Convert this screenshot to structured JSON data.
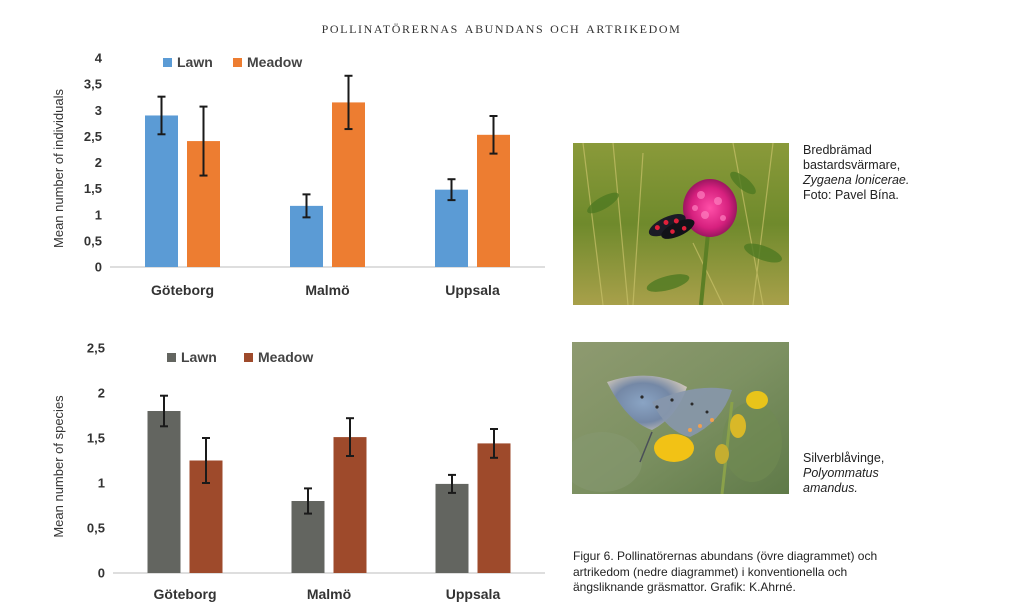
{
  "page": {
    "title": "pollinatörernas abundans och artrikedom"
  },
  "chart_data": [
    {
      "type": "bar",
      "title": "",
      "xlabel": "",
      "ylabel": "Mean number of individuals",
      "categories": [
        "Göteborg",
        "Malmö",
        "Uppsala"
      ],
      "ylim": [
        0,
        4
      ],
      "yticks": [
        "0",
        "0,5",
        "1",
        "1,5",
        "2",
        "2,5",
        "3",
        "3,5",
        "4"
      ],
      "grid": false,
      "legend": "top-left",
      "series": [
        {
          "name": "Lawn",
          "color": "#5b9bd5",
          "values": [
            2.9,
            1.17,
            1.48
          ],
          "errors": [
            0.36,
            0.22,
            0.2
          ]
        },
        {
          "name": "Meadow",
          "color": "#ed7d31",
          "values": [
            2.41,
            3.15,
            2.53
          ],
          "errors": [
            0.66,
            0.51,
            0.36
          ]
        }
      ]
    },
    {
      "type": "bar",
      "title": "",
      "xlabel": "",
      "ylabel": "Mean number of species",
      "categories": [
        "Göteborg",
        "Malmö",
        "Uppsala"
      ],
      "ylim": [
        0,
        2.5
      ],
      "yticks": [
        "0",
        "0,5",
        "1",
        "1,5",
        "2",
        "2,5"
      ],
      "grid": false,
      "legend": "top-left",
      "series": [
        {
          "name": "Lawn",
          "color": "#636560",
          "values": [
            1.8,
            0.8,
            0.99
          ],
          "errors": [
            0.17,
            0.14,
            0.1
          ]
        },
        {
          "name": "Meadow",
          "color": "#9e4a2b",
          "values": [
            1.25,
            1.51,
            1.44
          ],
          "errors": [
            0.25,
            0.21,
            0.16
          ]
        }
      ]
    }
  ],
  "photos": [
    {
      "name": "moth-photo",
      "caption": [
        "Bredbrämad",
        "bastardsvärmare,"
      ],
      "caption_italic": [
        "Zygaena lonicerae."
      ],
      "caption_credit": "Foto: Pavel Bína."
    },
    {
      "name": "butterfly-photo",
      "caption": [
        "Silverblåvinge,"
      ],
      "caption_italic": [
        "Polyommatus",
        "amandus."
      ],
      "caption_credit": ""
    }
  ],
  "figure_caption": "Figur 6. Pollinatörernas abundans (övre diagrammet) och artrikedom (nedre diagrammet) i konventionella och ängsliknande gräsmattor. Grafik: K.Ahrné."
}
